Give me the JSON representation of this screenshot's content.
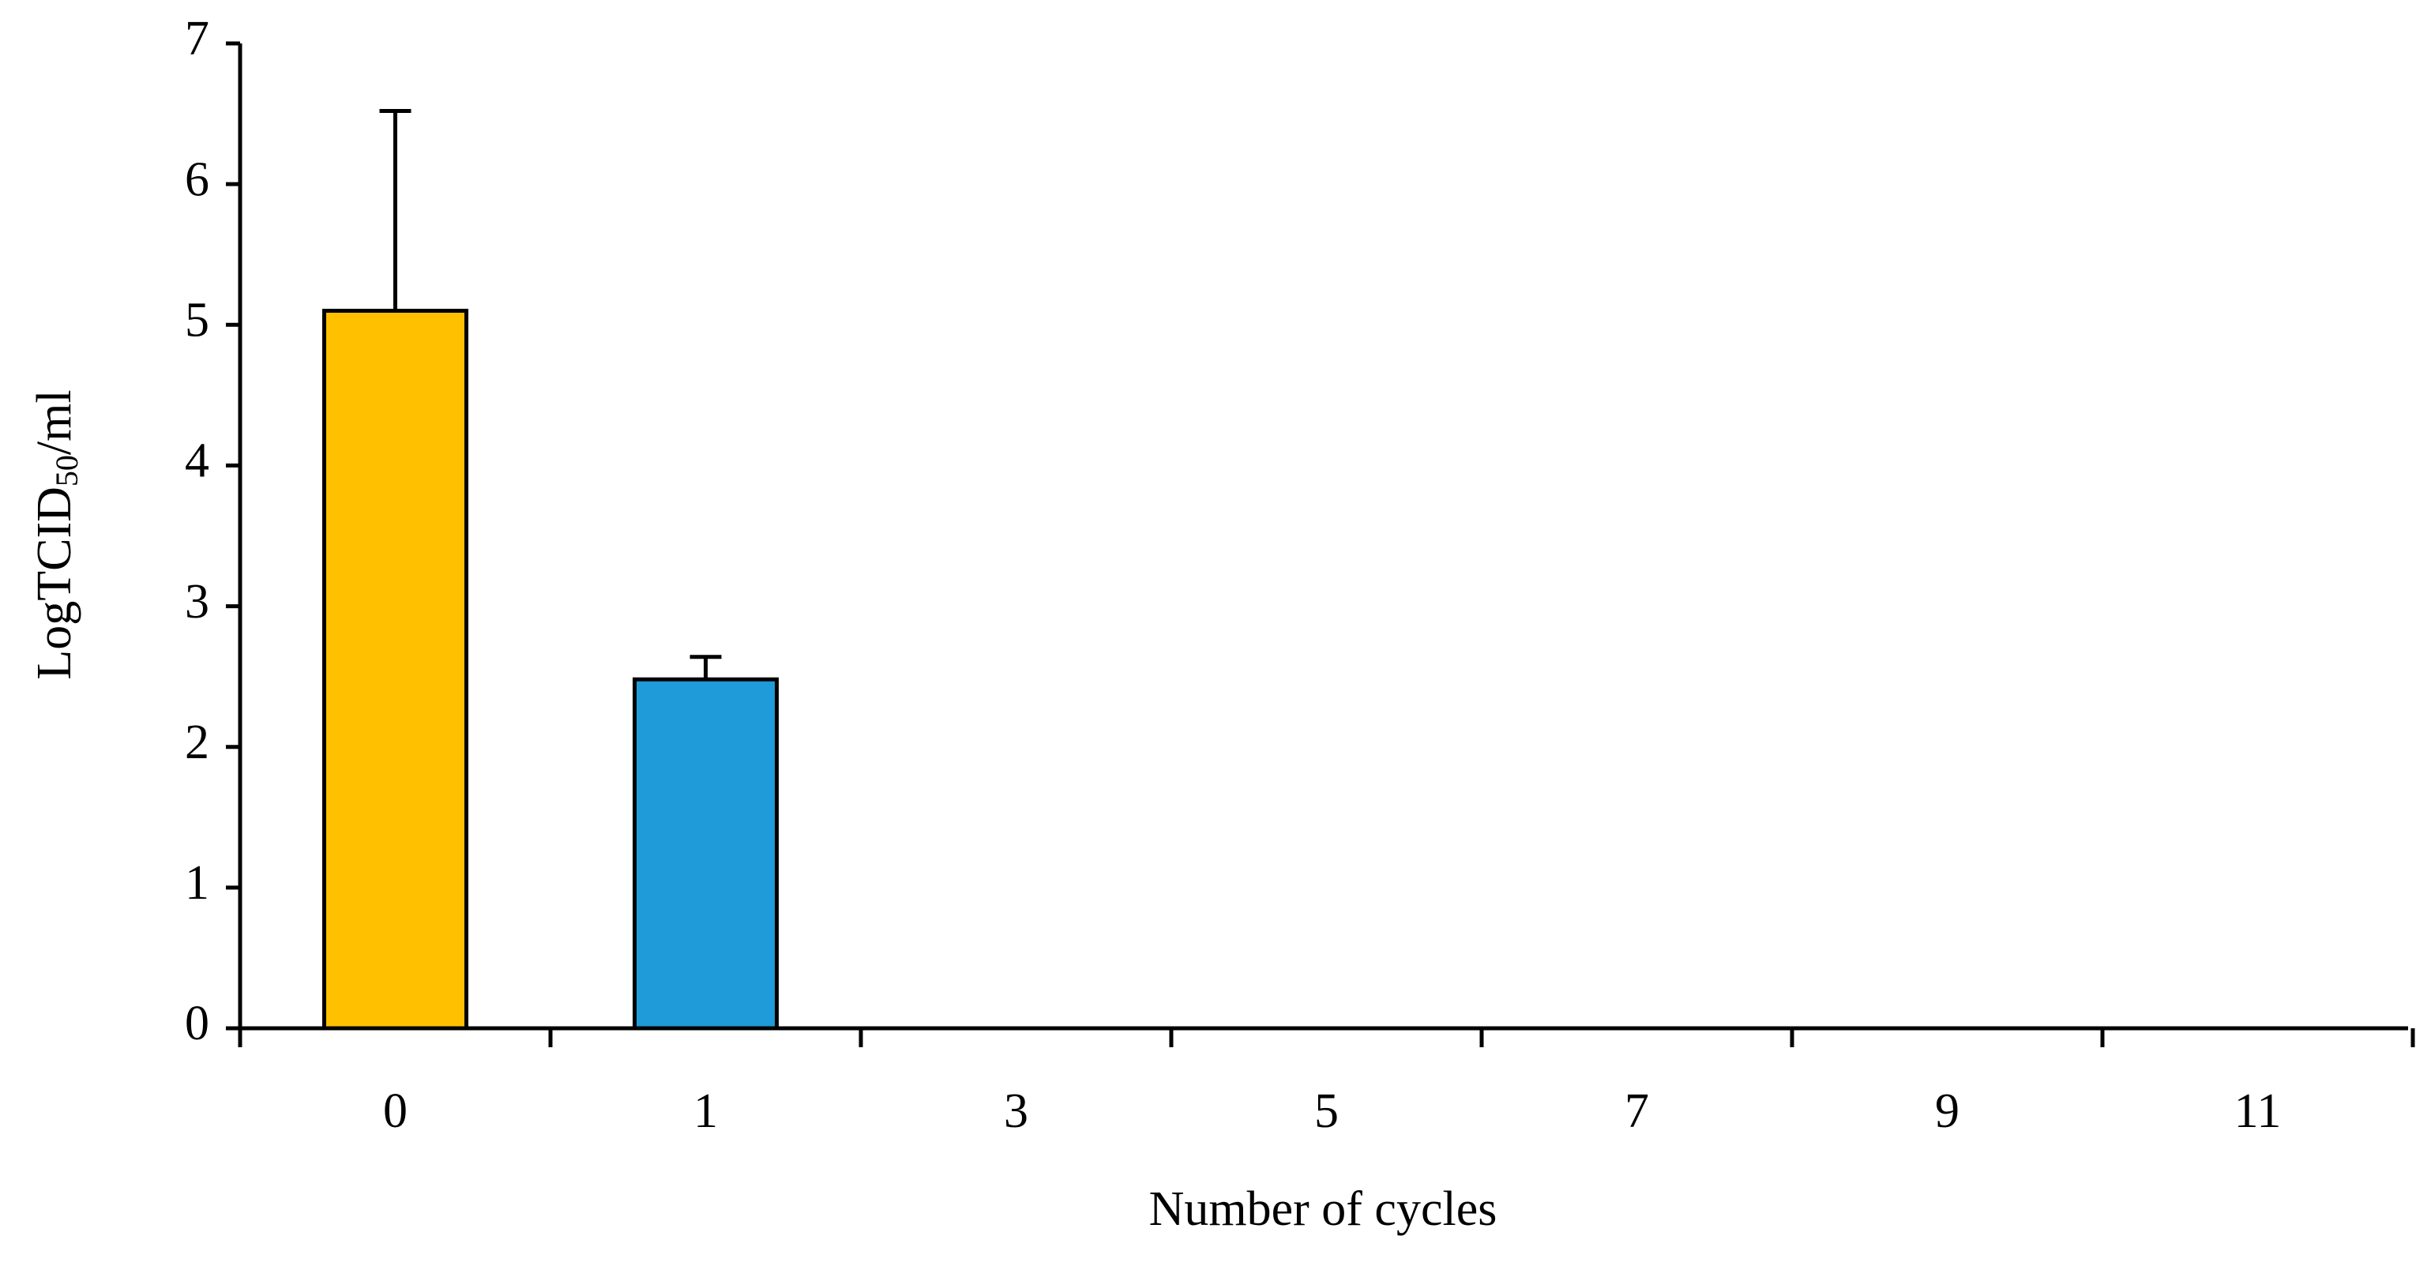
{
  "chart_data": {
    "type": "bar",
    "x_label": "Number of cycles",
    "y_label": {
      "text": "LogTCID",
      "subscript": "50",
      "suffix": "/ml"
    },
    "categories": [
      "0",
      "1",
      "3",
      "5",
      "7",
      "9",
      "11"
    ],
    "values": [
      5.1,
      2.48,
      0,
      0,
      0,
      0,
      0
    ],
    "errors": [
      1.42,
      0.16,
      null,
      null,
      null,
      null,
      null
    ],
    "colors": [
      "#ffc000",
      "#1e9bd8",
      null,
      null,
      null,
      null,
      null
    ],
    "ylim": [
      0,
      7
    ],
    "yticks": [
      0,
      1,
      2,
      3,
      4,
      5,
      6,
      7
    ],
    "grid": false
  }
}
